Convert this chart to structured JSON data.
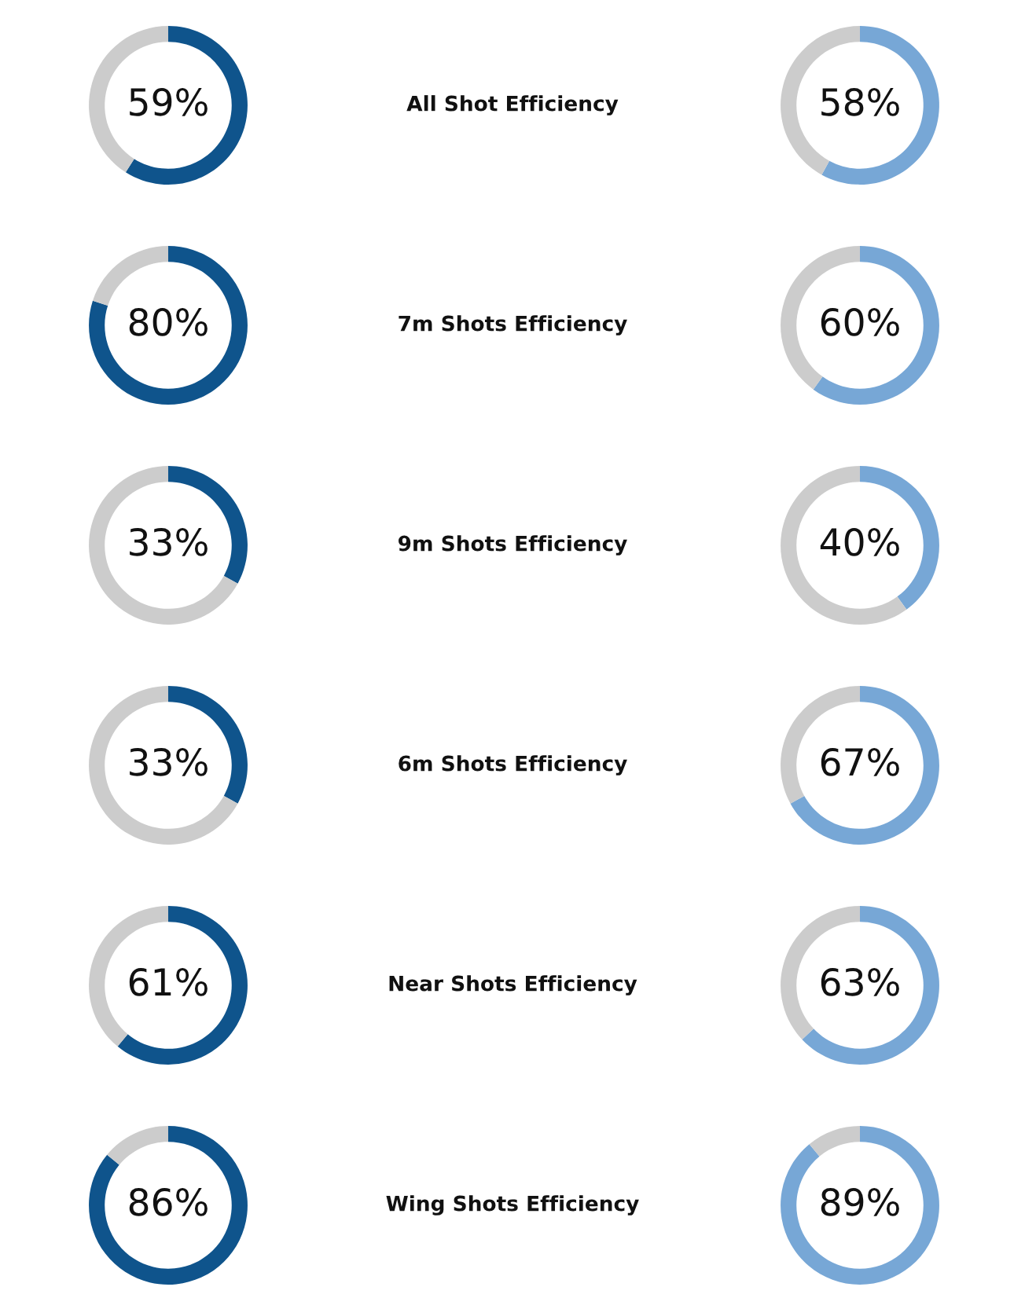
{
  "chart_data": [
    {
      "type": "donut",
      "title": "All Shot Efficiency",
      "categories": [
        null,
        null
      ],
      "values": [
        59,
        41
      ],
      "colors": [
        "#0f548c",
        "#cccccc"
      ],
      "value_labels": [
        "59%",
        null
      ]
    },
    {
      "type": "donut",
      "categories": [
        null,
        null
      ],
      "values": [
        58,
        42
      ],
      "colors": [
        "#77a7d6",
        "#cccccc"
      ],
      "value_labels": [
        "58%",
        null
      ]
    },
    {
      "type": "donut",
      "title": "7m Shots Efficiency",
      "categories": [
        null,
        null
      ],
      "values": [
        80,
        20
      ],
      "colors": [
        "#0f548c",
        "#cccccc"
      ],
      "value_labels": [
        "80%",
        null
      ]
    },
    {
      "type": "donut",
      "categories": [
        null,
        null
      ],
      "values": [
        60,
        40
      ],
      "colors": [
        "#77a7d6",
        "#cccccc"
      ],
      "value_labels": [
        "60%",
        null
      ]
    },
    {
      "type": "donut",
      "title": "9m Shots Efficiency",
      "categories": [
        null,
        null
      ],
      "values": [
        33,
        67
      ],
      "colors": [
        "#0f548c",
        "#cccccc"
      ],
      "value_labels": [
        "33%",
        null
      ]
    },
    {
      "type": "donut",
      "categories": [
        null,
        null
      ],
      "values": [
        40,
        60
      ],
      "colors": [
        "#77a7d6",
        "#cccccc"
      ],
      "value_labels": [
        "40%",
        null
      ]
    },
    {
      "type": "donut",
      "title": "6m Shots Efficiency",
      "categories": [
        null,
        null
      ],
      "values": [
        33,
        67
      ],
      "colors": [
        "#0f548c",
        "#cccccc"
      ],
      "value_labels": [
        "33%",
        null
      ]
    },
    {
      "type": "donut",
      "categories": [
        null,
        null
      ],
      "values": [
        67,
        33
      ],
      "colors": [
        "#77a7d6",
        "#cccccc"
      ],
      "value_labels": [
        "67%",
        null
      ]
    },
    {
      "type": "donut",
      "title": "Near Shots Efficiency",
      "categories": [
        null,
        null
      ],
      "values": [
        61,
        39
      ],
      "colors": [
        "#0f548c",
        "#cccccc"
      ],
      "value_labels": [
        "61%",
        null
      ]
    },
    {
      "type": "donut",
      "categories": [
        null,
        null
      ],
      "values": [
        63,
        37
      ],
      "colors": [
        "#77a7d6",
        "#cccccc"
      ],
      "value_labels": [
        "63%",
        null
      ]
    },
    {
      "type": "donut",
      "title": "Wing Shots Efficiency",
      "categories": [
        null,
        null
      ],
      "values": [
        86,
        14
      ],
      "colors": [
        "#0f548c",
        "#cccccc"
      ],
      "value_labels": [
        "86%",
        null
      ]
    },
    {
      "type": "donut",
      "categories": [
        null,
        null
      ],
      "values": [
        89,
        11
      ],
      "colors": [
        "#77a7d6",
        "#cccccc"
      ],
      "value_labels": [
        "89%",
        null
      ]
    }
  ]
}
